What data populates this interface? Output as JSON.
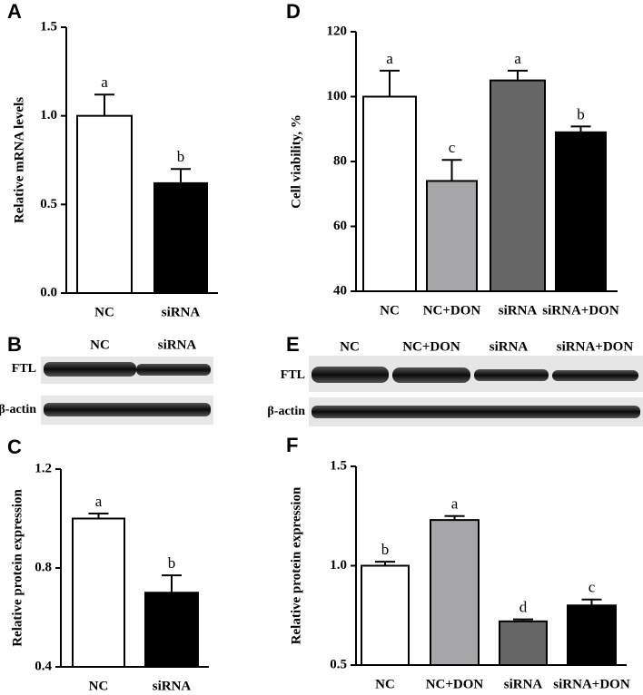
{
  "chart_data": [
    {
      "type": "bar",
      "label": "A",
      "ylabel": "Relative mRNA levels",
      "categories": [
        "NC",
        "siRNA"
      ],
      "values": [
        1.0,
        0.62
      ],
      "errors": [
        0.12,
        0.08
      ],
      "annotations": [
        "a",
        "b"
      ],
      "colors": [
        "#ffffff",
        "#000000"
      ],
      "ylim": [
        0,
        1.5
      ],
      "yticks": [
        {
          "value": 0,
          "label": "0.0"
        },
        0.5,
        {
          "value": 1,
          "label": "1.0"
        },
        1.5
      ]
    },
    {
      "type": "bar",
      "label": "D",
      "ylabel": "Cell viability, %",
      "categories": [
        "NC",
        "NC+DON",
        "siRNA",
        "siRNA+DON"
      ],
      "values": [
        100,
        74,
        105,
        89
      ],
      "errors": [
        8,
        6.5,
        3,
        1.8
      ],
      "annotations": [
        "a",
        "c",
        "a",
        "b"
      ],
      "colors": [
        "#ffffff",
        "#a6a6a8",
        "#666666",
        "#000000"
      ],
      "ylim": [
        40,
        120
      ],
      "yticks": [
        40,
        60,
        80,
        100,
        120
      ]
    },
    {
      "type": "bar",
      "label": "C",
      "ylabel": "Relative protein expression",
      "categories": [
        "NC",
        "siRNA"
      ],
      "values": [
        1.0,
        0.7
      ],
      "errors": [
        0.02,
        0.07
      ],
      "annotations": [
        "a",
        "b"
      ],
      "colors": [
        "#ffffff",
        "#000000"
      ],
      "ylim": [
        0.4,
        1.2
      ],
      "yticks": [
        0.4,
        0.8,
        1.2
      ]
    },
    {
      "type": "bar",
      "label": "F",
      "ylabel": "Relative protein expression",
      "categories": [
        "NC",
        "NC+DON",
        "siRNA",
        "siRNA+DON"
      ],
      "values": [
        1.0,
        1.23,
        0.72,
        0.8
      ],
      "errors": [
        0.02,
        0.02,
        0.01,
        0.03
      ],
      "annotations": [
        "b",
        "a",
        "d",
        "c"
      ],
      "colors": [
        "#ffffff",
        "#a6a6a8",
        "#666666",
        "#000000"
      ],
      "ylim": [
        0.5,
        1.5
      ],
      "yticks": [
        0.5,
        {
          "value": 1,
          "label": "1.0"
        },
        1.5
      ]
    }
  ],
  "blots": [
    {
      "label": "B",
      "lanes": [
        "NC",
        "siRNA"
      ],
      "rows": [
        "FTL",
        "β-actin"
      ]
    },
    {
      "label": "E",
      "lanes": [
        "NC",
        "NC+DON",
        "siRNA",
        "siRNA+DON"
      ],
      "rows": [
        "FTL",
        "β-actin"
      ]
    }
  ]
}
